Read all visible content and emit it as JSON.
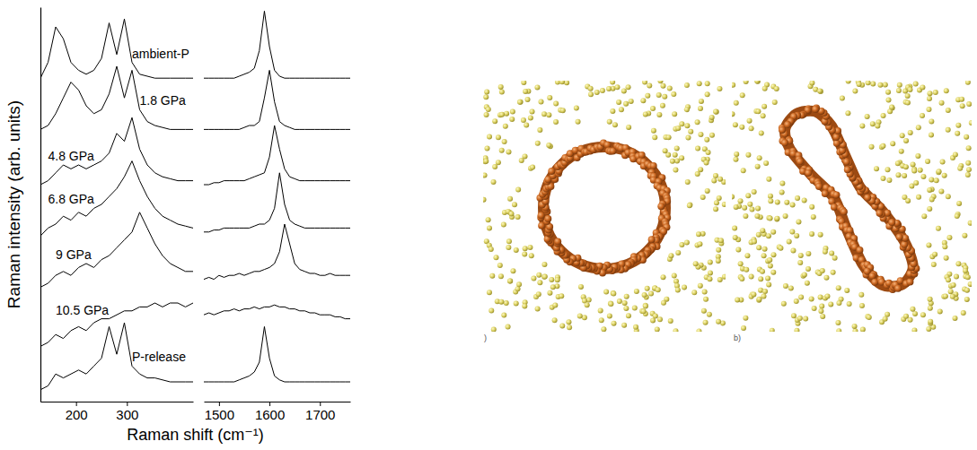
{
  "chart_data": [
    {
      "type": "line",
      "ylabel": "Raman intensity (arb. units)",
      "xlabel": "Raman shift (cm⁻¹)",
      "color": "#000000",
      "tick_labels": "x",
      "xlim": [
        130,
        430
      ],
      "xticks": [
        200,
        300
      ],
      "ylim": [
        0,
        100
      ],
      "x": [
        130,
        145,
        160,
        175,
        190,
        205,
        220,
        235,
        250,
        265,
        280,
        295,
        310,
        325,
        340,
        355,
        370,
        385,
        400,
        415,
        430
      ],
      "series": [
        {
          "name": "ambient-P",
          "values": [
            82,
            86,
            95,
            92,
            86,
            84,
            83,
            84,
            87,
            96,
            88,
            97,
            86,
            83,
            82.5,
            82,
            82,
            82,
            82,
            82,
            82
          ]
        },
        {
          "name": "1.8 GPa",
          "values": [
            69,
            70,
            73,
            77,
            81,
            79,
            75,
            73,
            74,
            78,
            85,
            77,
            84,
            74,
            71,
            70,
            69.5,
            69,
            69,
            69,
            69
          ]
        },
        {
          "name": "4.8 GPa",
          "values": [
            55,
            56,
            58,
            60,
            59,
            60,
            59,
            60,
            61,
            63,
            68,
            66,
            72,
            64,
            60,
            58,
            57,
            56.5,
            56,
            56,
            56
          ]
        },
        {
          "name": "6.8 GPa",
          "values": [
            42,
            44,
            45,
            47,
            46,
            48,
            47,
            49,
            50,
            52,
            54,
            57,
            61,
            56,
            52,
            49,
            47,
            46,
            45,
            44.5,
            44
          ]
        },
        {
          "name": "9 GPa",
          "values": [
            29,
            30,
            32,
            33,
            32,
            34,
            35,
            34,
            36,
            37,
            39,
            41,
            43,
            48,
            44,
            40,
            37,
            35,
            34,
            33,
            33
          ]
        },
        {
          "name": "10.5 GPa",
          "values": [
            14,
            15,
            17,
            16,
            18,
            19,
            18,
            20,
            21,
            21,
            22,
            23,
            23,
            24,
            24,
            25,
            24,
            25,
            25,
            24,
            25
          ]
        },
        {
          "name": "P-release",
          "values": [
            3,
            4,
            7,
            6,
            7,
            8,
            7,
            9,
            11,
            19,
            12,
            20,
            9,
            7,
            6,
            6,
            5.5,
            5,
            5,
            5,
            5
          ]
        }
      ]
    },
    {
      "type": "line",
      "color": "#000000",
      "tick_labels": "x",
      "xlim": [
        1470,
        1760
      ],
      "xticks": [
        1500,
        1600,
        1700
      ],
      "ylim": [
        0,
        100
      ],
      "x": [
        1470,
        1480,
        1490,
        1500,
        1510,
        1520,
        1530,
        1540,
        1550,
        1560,
        1570,
        1580,
        1590,
        1600,
        1610,
        1620,
        1630,
        1640,
        1650,
        1660,
        1670,
        1680,
        1690,
        1700,
        1710,
        1720,
        1730,
        1740,
        1750,
        1760
      ],
      "series": [
        {
          "values": [
            82,
            82,
            82,
            82,
            82,
            82,
            82,
            82.5,
            83,
            83.5,
            84.5,
            89,
            99,
            90,
            84,
            82.5,
            82,
            82,
            82,
            82,
            82,
            82,
            82,
            82,
            82,
            82,
            82,
            82,
            82,
            82
          ]
        },
        {
          "values": [
            69,
            69,
            69,
            69,
            69,
            69,
            69,
            69,
            69.5,
            70,
            70,
            71,
            77,
            84,
            76,
            71,
            70,
            69.5,
            69,
            69,
            69,
            69,
            69,
            69,
            69,
            69,
            69,
            69,
            69,
            69
          ]
        },
        {
          "values": [
            55,
            55,
            55.5,
            55.5,
            56,
            56,
            56,
            56,
            56,
            56.5,
            57,
            57.5,
            58,
            62,
            70,
            64,
            59,
            57,
            56.5,
            56,
            56,
            56,
            56,
            56,
            56,
            56,
            56,
            56,
            56,
            56
          ]
        },
        {
          "values": [
            43,
            43,
            43.5,
            43.5,
            44,
            44,
            44,
            44,
            44,
            44,
            44.5,
            45,
            45,
            46,
            49,
            58,
            50,
            46,
            45,
            44.5,
            44,
            44,
            44,
            44,
            44,
            44,
            44,
            44,
            44,
            44
          ]
        },
        {
          "values": [
            31,
            31.5,
            31,
            32,
            31.5,
            32,
            32,
            32.5,
            32,
            32.5,
            33,
            33,
            33.5,
            34,
            35,
            38,
            45,
            40,
            35,
            33.5,
            33,
            32.5,
            32.5,
            32,
            32,
            32.5,
            32,
            32,
            32,
            32
          ]
        },
        {
          "values": [
            22,
            22.5,
            22,
            22.5,
            23,
            23,
            23.5,
            23,
            23.5,
            23.5,
            24,
            23.5,
            24,
            24,
            24.5,
            24,
            24,
            23.5,
            23.5,
            23,
            23,
            22.5,
            22.5,
            22,
            22,
            22,
            21.5,
            21.5,
            21,
            21
          ]
        },
        {
          "values": [
            5,
            5,
            5,
            5,
            5,
            5,
            5,
            5.5,
            6,
            6.5,
            7.5,
            10,
            19,
            11,
            6.5,
            5.5,
            5,
            5,
            5,
            5,
            5,
            5,
            5,
            5,
            5,
            5,
            5,
            5,
            5,
            5
          ]
        }
      ]
    }
  ],
  "panels": [
    {
      "label": ")"
    },
    {
      "label": "b)"
    }
  ]
}
